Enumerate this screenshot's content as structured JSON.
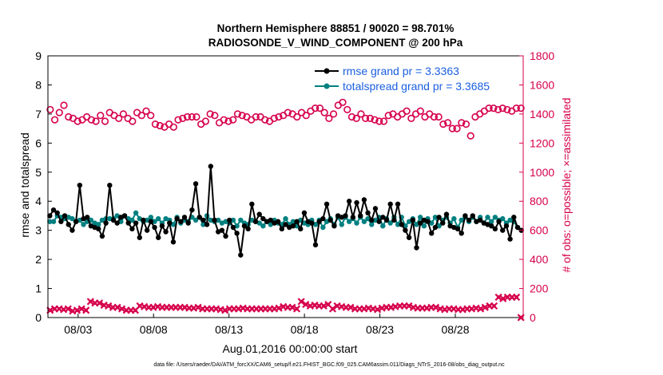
{
  "chart_data": {
    "type": "line",
    "title_line1": "Northern Hemisphere 88851 / 90020 = 98.701%",
    "title_line2": "RADIOSONDE_V_WIND_COMPONENT @ 200 hPa",
    "xlabel": "Aug.01,2016 00:00:00 start",
    "ylabel_left": "rmse and totalspread",
    "ylabel_right": "# of obs: o=possible; ×=assimilated",
    "footer": "data file: /Users/raeder/DAI/ATM_forcXX/CAM6_setup/f.e21.FHIST_BGC.f09_025.CAM6assim.011/Diags_NTrS_2016-08/obs_diag_output.nc",
    "x_range_days": [
      0,
      31.5
    ],
    "ylim_left": [
      0,
      9
    ],
    "ylim_right": [
      0,
      1800
    ],
    "left_ticks": [
      0,
      1,
      2,
      3,
      4,
      5,
      6,
      7,
      8,
      9
    ],
    "right_ticks": [
      0,
      200,
      400,
      600,
      800,
      1000,
      1200,
      1400,
      1600,
      1800
    ],
    "x_ticks": [
      {
        "day": 2,
        "label": "08/03"
      },
      {
        "day": 7,
        "label": "08/08"
      },
      {
        "day": 12,
        "label": "08/13"
      },
      {
        "day": 17,
        "label": "08/18"
      },
      {
        "day": 22,
        "label": "08/23"
      },
      {
        "day": 27,
        "label": "08/28"
      }
    ],
    "grid": false,
    "legend_position": "top-right",
    "colors": {
      "rmse": "#000000",
      "spread": "#008080",
      "obs": "#d6004c",
      "axis_left": "#000000",
      "axis_right": "#d6004c",
      "legend_text": "#1a5fe0"
    },
    "series": [
      {
        "name": "rmse grand pr = 3.3363",
        "values": [
          3.5,
          3.7,
          3.6,
          3.3,
          3.5,
          3.2,
          3.0,
          3.3,
          4.55,
          3.4,
          3.45,
          3.15,
          3.1,
          3.05,
          2.8,
          3.25,
          4.55,
          3.35,
          3.25,
          3.45,
          3.5,
          3.25,
          3.05,
          3.25,
          2.75,
          3.35,
          3.0,
          3.3,
          3.1,
          2.75,
          3.15,
          2.95,
          3.25,
          2.6,
          3.4,
          3.3,
          3.45,
          3.25,
          3.7,
          4.6,
          3.45,
          3.35,
          3.2,
          5.2,
          3.35,
          2.95,
          3.0,
          2.8,
          3.35,
          3.1,
          2.9,
          2.15,
          3.15,
          3.05,
          3.9,
          3.3,
          3.55,
          3.4,
          3.3,
          3.35,
          3.25,
          3.3,
          3.05,
          3.2,
          3.1,
          3.15,
          3.3,
          3.05,
          3.6,
          3.3,
          3.25,
          2.5,
          3.3,
          3.4,
          3.9,
          3.35,
          3.15,
          3.5,
          3.45,
          3.5,
          4.0,
          3.45,
          3.95,
          3.5,
          4.05,
          3.6,
          3.35,
          3.75,
          3.3,
          3.45,
          3.35,
          3.9,
          3.35,
          3.9,
          3.2,
          3.0,
          2.75,
          3.35,
          2.4,
          3.25,
          3.35,
          3.3,
          2.9,
          3.1,
          3.45,
          3.25,
          3.55,
          3.15,
          3.1,
          3.05,
          2.9,
          3.5,
          3.35,
          3.5,
          3.3,
          3.35,
          3.25,
          3.2,
          3.15,
          3.05,
          3.3,
          3.0,
          3.15,
          2.7,
          3.45,
          3.1,
          3.0
        ]
      },
      {
        "name": "totalspread grand pr = 3.3685",
        "values": [
          3.3,
          3.3,
          3.5,
          3.45,
          3.4,
          3.45,
          3.4,
          3.3,
          3.35,
          3.2,
          3.3,
          3.35,
          3.25,
          3.2,
          3.35,
          3.4,
          3.4,
          3.4,
          3.5,
          3.3,
          3.5,
          3.4,
          3.35,
          3.6,
          3.4,
          3.3,
          3.35,
          3.45,
          3.3,
          3.4,
          3.25,
          3.4,
          3.35,
          3.2,
          3.45,
          3.25,
          3.35,
          3.3,
          3.45,
          3.35,
          3.45,
          3.2,
          3.5,
          3.35,
          3.3,
          3.35,
          3.25,
          3.3,
          3.25,
          3.35,
          3.15,
          3.35,
          3.25,
          3.2,
          3.35,
          3.3,
          3.25,
          3.15,
          3.3,
          3.2,
          3.35,
          3.25,
          3.2,
          3.4,
          3.2,
          3.3,
          3.15,
          3.35,
          3.25,
          3.2,
          3.35,
          3.2,
          3.35,
          3.1,
          3.3,
          3.4,
          3.2,
          3.45,
          3.2,
          3.45,
          3.3,
          3.4,
          3.25,
          3.45,
          3.3,
          3.4,
          3.2,
          3.35,
          3.45,
          3.15,
          3.4,
          3.25,
          3.45,
          3.2,
          3.45,
          3.15,
          3.3,
          3.4,
          3.2,
          3.45,
          3.15,
          3.4,
          3.25,
          3.45,
          3.15,
          3.35,
          3.45,
          3.25,
          3.4,
          3.1,
          3.35,
          3.45,
          3.3,
          3.45,
          3.3,
          3.45,
          3.25,
          3.45,
          3.3,
          3.45,
          3.35,
          3.4,
          3.25,
          3.35,
          3.3,
          3.1,
          3.0
        ]
      },
      {
        "name": "possible",
        "values": [
          1430,
          1360,
          1410,
          1460,
          1380,
          1370,
          1350,
          1360,
          1380,
          1360,
          1350,
          1390,
          1350,
          1410,
          1390,
          1370,
          1400,
          1370,
          1350,
          1410,
          1390,
          1420,
          1390,
          1330,
          1320,
          1310,
          1330,
          1310,
          1360,
          1370,
          1380,
          1380,
          1380,
          1330,
          1350,
          1400,
          1390,
          1340,
          1360,
          1350,
          1360,
          1400,
          1390,
          1380,
          1360,
          1380,
          1380,
          1360,
          1350,
          1370,
          1380,
          1390,
          1410,
          1400,
          1380,
          1410,
          1390,
          1420,
          1440,
          1440,
          1410,
          1370,
          1400,
          1460,
          1480,
          1430,
          1380,
          1370,
          1400,
          1370,
          1370,
          1360,
          1350,
          1350,
          1390,
          1400,
          1380,
          1400,
          1420,
          1370,
          1400,
          1420,
          1380,
          1400,
          1380,
          1380,
          1330,
          1340,
          1300,
          1300,
          1340,
          1330,
          1250,
          1380,
          1400,
          1420,
          1440,
          1440,
          1430,
          1440,
          1430,
          1420,
          1440,
          1440
        ]
      },
      {
        "name": "assimilated",
        "values": [
          50,
          60,
          60,
          55,
          60,
          45,
          50,
          60,
          50,
          110,
          100,
          100,
          85,
          80,
          70,
          70,
          60,
          50,
          50,
          50,
          80,
          75,
          70,
          70,
          75,
          70,
          70,
          70,
          70,
          70,
          70,
          65,
          65,
          70,
          60,
          60,
          60,
          60,
          55,
          50,
          60,
          60,
          60,
          65,
          60,
          60,
          60,
          60,
          60,
          60,
          60,
          65,
          75,
          70,
          70,
          60,
          110,
          90,
          80,
          85,
          80,
          80,
          90,
          60,
          80,
          75,
          70,
          70,
          60,
          60,
          60,
          65,
          60,
          55,
          65,
          70,
          70,
          75,
          80,
          80,
          80,
          70,
          65,
          65,
          65,
          70,
          70,
          60,
          55,
          60,
          60,
          55,
          55,
          60,
          60,
          65,
          60,
          70,
          80,
          80,
          140,
          130,
          140,
          140,
          140,
          0
        ]
      }
    ]
  }
}
